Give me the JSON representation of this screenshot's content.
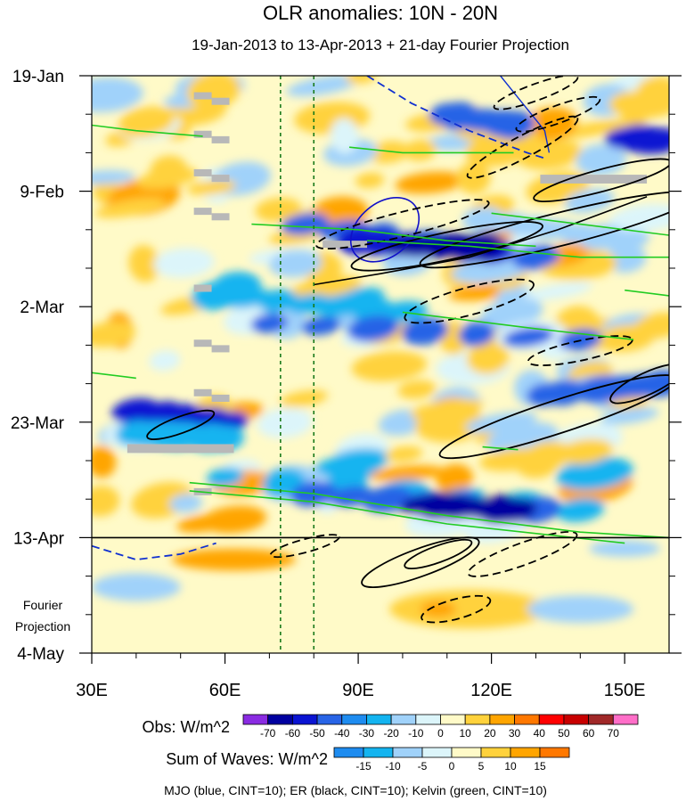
{
  "chart_data": {
    "type": "heatmap",
    "title": "OLR anomalies: 10N - 20N",
    "subtitle": "19-Jan-2013 to 13-Apr-2013 + 21-day Fourier Projection",
    "x_axis": {
      "range": [
        30,
        160
      ],
      "ticks": [
        {
          "value": 30,
          "label": "30E"
        },
        {
          "value": 60,
          "label": "60E"
        },
        {
          "value": 90,
          "label": "90E"
        },
        {
          "value": 120,
          "label": "120E"
        },
        {
          "value": 150,
          "label": "150E"
        }
      ]
    },
    "y_axis": {
      "range_days": [
        0,
        105
      ],
      "ticks": [
        {
          "value": 0,
          "label": "19-Jan"
        },
        {
          "value": 21,
          "label": "9-Feb"
        },
        {
          "value": 42,
          "label": "2-Mar"
        },
        {
          "value": 63,
          "label": "23-Mar"
        },
        {
          "value": 84,
          "label": "13-Apr"
        },
        {
          "value": 105,
          "label": "4-May"
        }
      ]
    },
    "projection_start_day": 84,
    "projection_label": [
      "Fourier",
      "Projection"
    ],
    "reference_lines_lon": [
      72.5,
      80
    ],
    "obs_colorbar": {
      "label": "Obs: W/m^2",
      "levels": [
        "-70",
        "-60",
        "-50",
        "-40",
        "-30",
        "-20",
        "-10",
        "0",
        "10",
        "20",
        "30",
        "40",
        "50",
        "60",
        "70"
      ],
      "colors": [
        "#8a2be2",
        "#0000a0",
        "#0a14d2",
        "#2864e6",
        "#1e8cf0",
        "#14b4f0",
        "#a0d2fa",
        "#dcf5fa",
        "#fffac8",
        "#ffd23c",
        "#ffa500",
        "#ff7800",
        "#ff0000",
        "#c80000",
        "#a02828",
        "#ff6ec8"
      ]
    },
    "waves_colorbar": {
      "label": "Sum of Waves: W/m^2",
      "levels": [
        "-15",
        "-10",
        "-5",
        "0",
        "5",
        "10",
        "15"
      ],
      "colors": [
        "#1e8cf0",
        "#14b4f0",
        "#a0d2fa",
        "#dcf5fa",
        "#fffac8",
        "#ffd23c",
        "#ffa500",
        "#ff7800"
      ]
    },
    "contour_legend": "MJO (blue, CINT=10); ER (black, CINT=10); Kelvin (green, CINT=10)",
    "wave_colors": {
      "mjo": "#1010c8",
      "er": "#000000",
      "kelvin": "#22cc22",
      "mjo_neg": "#1030d0"
    }
  }
}
